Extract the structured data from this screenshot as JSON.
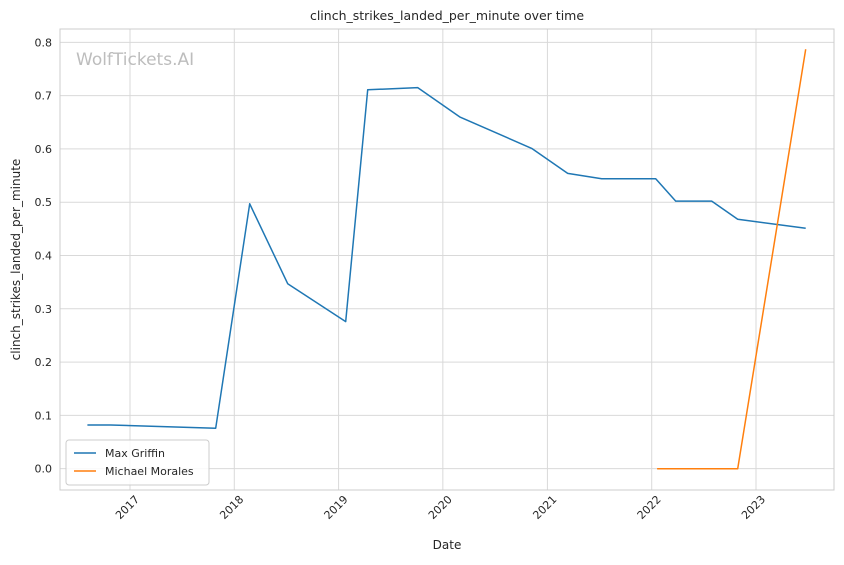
{
  "chart_data": {
    "type": "line",
    "title": "clinch_strikes_landed_per_minute over time",
    "xlabel": "Date",
    "ylabel": "clinch_strikes_landed_per_minute",
    "watermark": "WolfTickets.AI",
    "x_type": "date",
    "xlim": [
      "2016-05-01",
      "2023-10-01"
    ],
    "ylim": [
      -0.04,
      0.825
    ],
    "x_ticks": [
      "2017-01-01",
      "2018-01-01",
      "2019-01-01",
      "2020-01-01",
      "2021-01-01",
      "2022-01-01",
      "2023-01-01"
    ],
    "x_tick_labels": [
      "2017",
      "2018",
      "2019",
      "2020",
      "2021",
      "2022",
      "2023"
    ],
    "y_ticks": [
      0.0,
      0.1,
      0.2,
      0.3,
      0.4,
      0.5,
      0.6,
      0.7,
      0.8
    ],
    "y_tick_labels": [
      "0.0",
      "0.1",
      "0.2",
      "0.3",
      "0.4",
      "0.5",
      "0.6",
      "0.7",
      "0.8"
    ],
    "grid": true,
    "legend_position": "lower-left",
    "series": [
      {
        "name": "Max Griffin",
        "color": "#1f77b4",
        "points": [
          {
            "x": "2016-08-05",
            "y": 0.082
          },
          {
            "x": "2016-10-25",
            "y": 0.082
          },
          {
            "x": "2017-10-28",
            "y": 0.076
          },
          {
            "x": "2018-02-24",
            "y": 0.497
          },
          {
            "x": "2018-07-07",
            "y": 0.347
          },
          {
            "x": "2019-01-26",
            "y": 0.276
          },
          {
            "x": "2019-04-13",
            "y": 0.711
          },
          {
            "x": "2019-10-05",
            "y": 0.715
          },
          {
            "x": "2020-02-29",
            "y": 0.66
          },
          {
            "x": "2020-11-07",
            "y": 0.601
          },
          {
            "x": "2021-03-13",
            "y": 0.554
          },
          {
            "x": "2021-07-10",
            "y": 0.544
          },
          {
            "x": "2022-01-15",
            "y": 0.544
          },
          {
            "x": "2022-03-26",
            "y": 0.502
          },
          {
            "x": "2022-07-30",
            "y": 0.502
          },
          {
            "x": "2022-10-29",
            "y": 0.468
          },
          {
            "x": "2023-06-24",
            "y": 0.451
          }
        ]
      },
      {
        "name": "Michael Morales",
        "color": "#ff7f0e",
        "points": [
          {
            "x": "2022-01-20",
            "y": 0.0
          },
          {
            "x": "2022-10-29",
            "y": 0.0
          },
          {
            "x": "2023-06-24",
            "y": 0.787
          }
        ]
      }
    ]
  }
}
